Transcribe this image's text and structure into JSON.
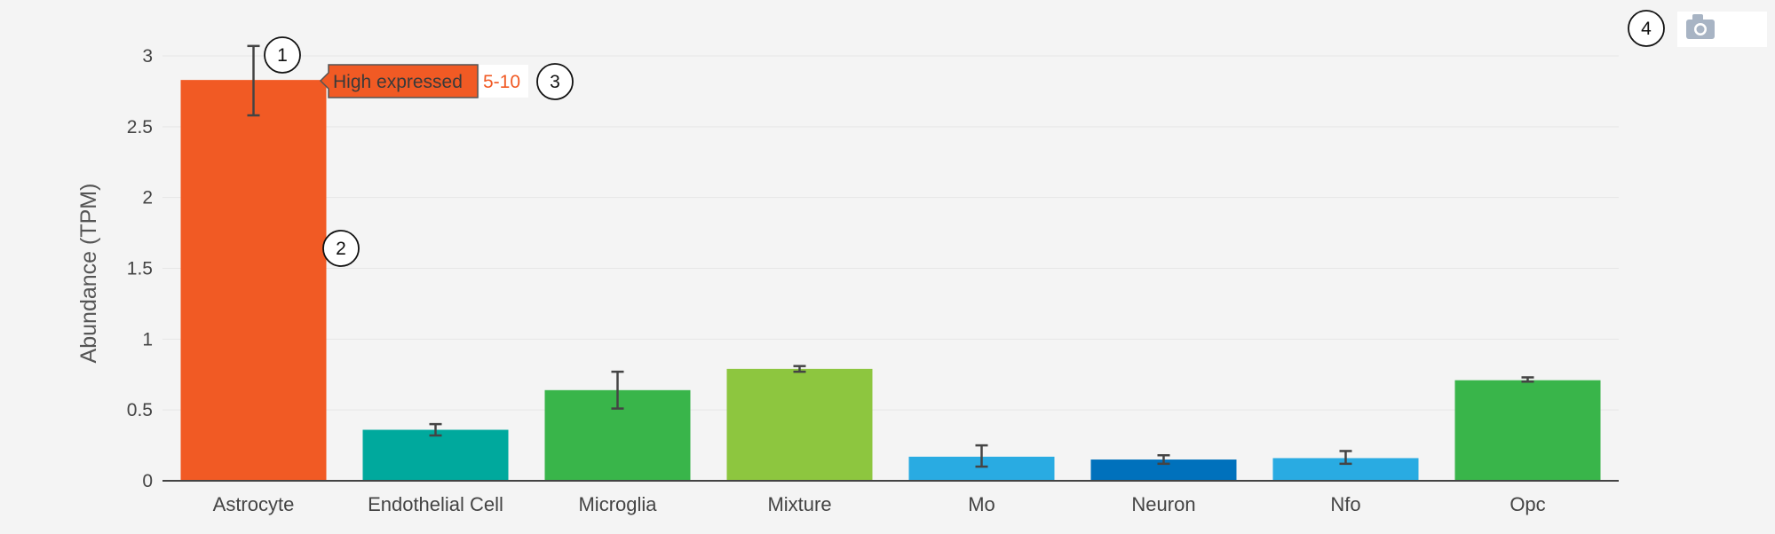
{
  "chart_data": {
    "type": "bar",
    "ylabel": "Abundance (TPM)",
    "ylim": [
      0,
      3.0
    ],
    "yticks": [
      0,
      0.5,
      1,
      1.5,
      2,
      2.5,
      3
    ],
    "grid": true,
    "categories": [
      "Astrocyte",
      "Endothelial Cell",
      "Microglia",
      "Mixture",
      "Mo",
      "Neuron",
      "Nfo",
      "Opc"
    ],
    "values": [
      2.83,
      0.36,
      0.64,
      0.79,
      0.17,
      0.15,
      0.16,
      0.71
    ],
    "error_low": [
      2.58,
      0.32,
      0.51,
      0.77,
      0.1,
      0.12,
      0.12,
      0.7
    ],
    "error_high": [
      3.07,
      0.4,
      0.77,
      0.81,
      0.25,
      0.18,
      0.21,
      0.73
    ],
    "colors": [
      "#f15a24",
      "#00a99d",
      "#39b54a",
      "#8dc63f",
      "#29abe2",
      "#0071bc",
      "#29abe2",
      "#39b54a"
    ]
  },
  "tooltip": {
    "label": "High expressed",
    "range": "5-10",
    "bg_color": "#f15a24",
    "range_color": "#f15a24"
  },
  "callouts": [
    "1",
    "2",
    "3",
    "4"
  ],
  "toolbar": {
    "icon": "camera-icon"
  }
}
